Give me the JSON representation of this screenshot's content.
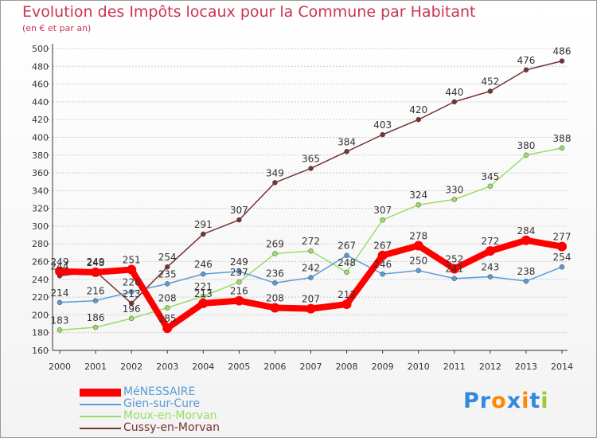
{
  "chart_data": {
    "type": "line",
    "title": "Evolution des Impôts locaux pour la Commune par Habitant",
    "subtitle": "(en € et par an)",
    "categories": [
      "2000",
      "2001",
      "2002",
      "2003",
      "2004",
      "2005",
      "2006",
      "2007",
      "2008",
      "2009",
      "2010",
      "2011",
      "2012",
      "2013",
      "2014"
    ],
    "ylim": [
      160,
      500
    ],
    "yticks": [
      160,
      180,
      200,
      220,
      240,
      260,
      280,
      300,
      320,
      340,
      360,
      380,
      400,
      420,
      440,
      460,
      480,
      500
    ],
    "grid": "horizontal",
    "legend_position": "bottom-left",
    "series": [
      {
        "name": "MéNESSAIRE",
        "color": "#ff0000",
        "values": [
          249,
          248,
          251,
          185,
          213,
          216,
          208,
          207,
          212,
          267,
          278,
          252,
          272,
          284,
          277
        ]
      },
      {
        "name": "Gien-sur-Cure",
        "color": "#5a9bd5",
        "values": [
          214,
          216,
          226,
          235,
          246,
          249,
          236,
          242,
          267,
          246,
          250,
          241,
          243,
          238,
          254
        ]
      },
      {
        "name": "Moux-en-Morvan",
        "color": "#99dd66",
        "values": [
          183,
          186,
          196,
          208,
          221,
          237,
          269,
          272,
          248,
          307,
          324,
          330,
          345,
          380,
          388
        ]
      },
      {
        "name": "Cussy-en-Morvan",
        "color": "#773333",
        "values": [
          244,
          249,
          213,
          254,
          291,
          307,
          349,
          365,
          384,
          403,
          420,
          440,
          452,
          476,
          486
        ]
      }
    ]
  },
  "brand": {
    "name": "Proxiti",
    "letters": [
      "P",
      "r",
      "o",
      "x",
      "i",
      "t",
      "i"
    ],
    "colors": [
      "#3388dd",
      "#3388dd",
      "#ff8800",
      "#3388dd",
      "#ff8800",
      "#3388dd",
      "#99cc33"
    ]
  },
  "colors": {
    "title": "#cc3355",
    "axis": "#333333",
    "grid": "#cccccc"
  }
}
